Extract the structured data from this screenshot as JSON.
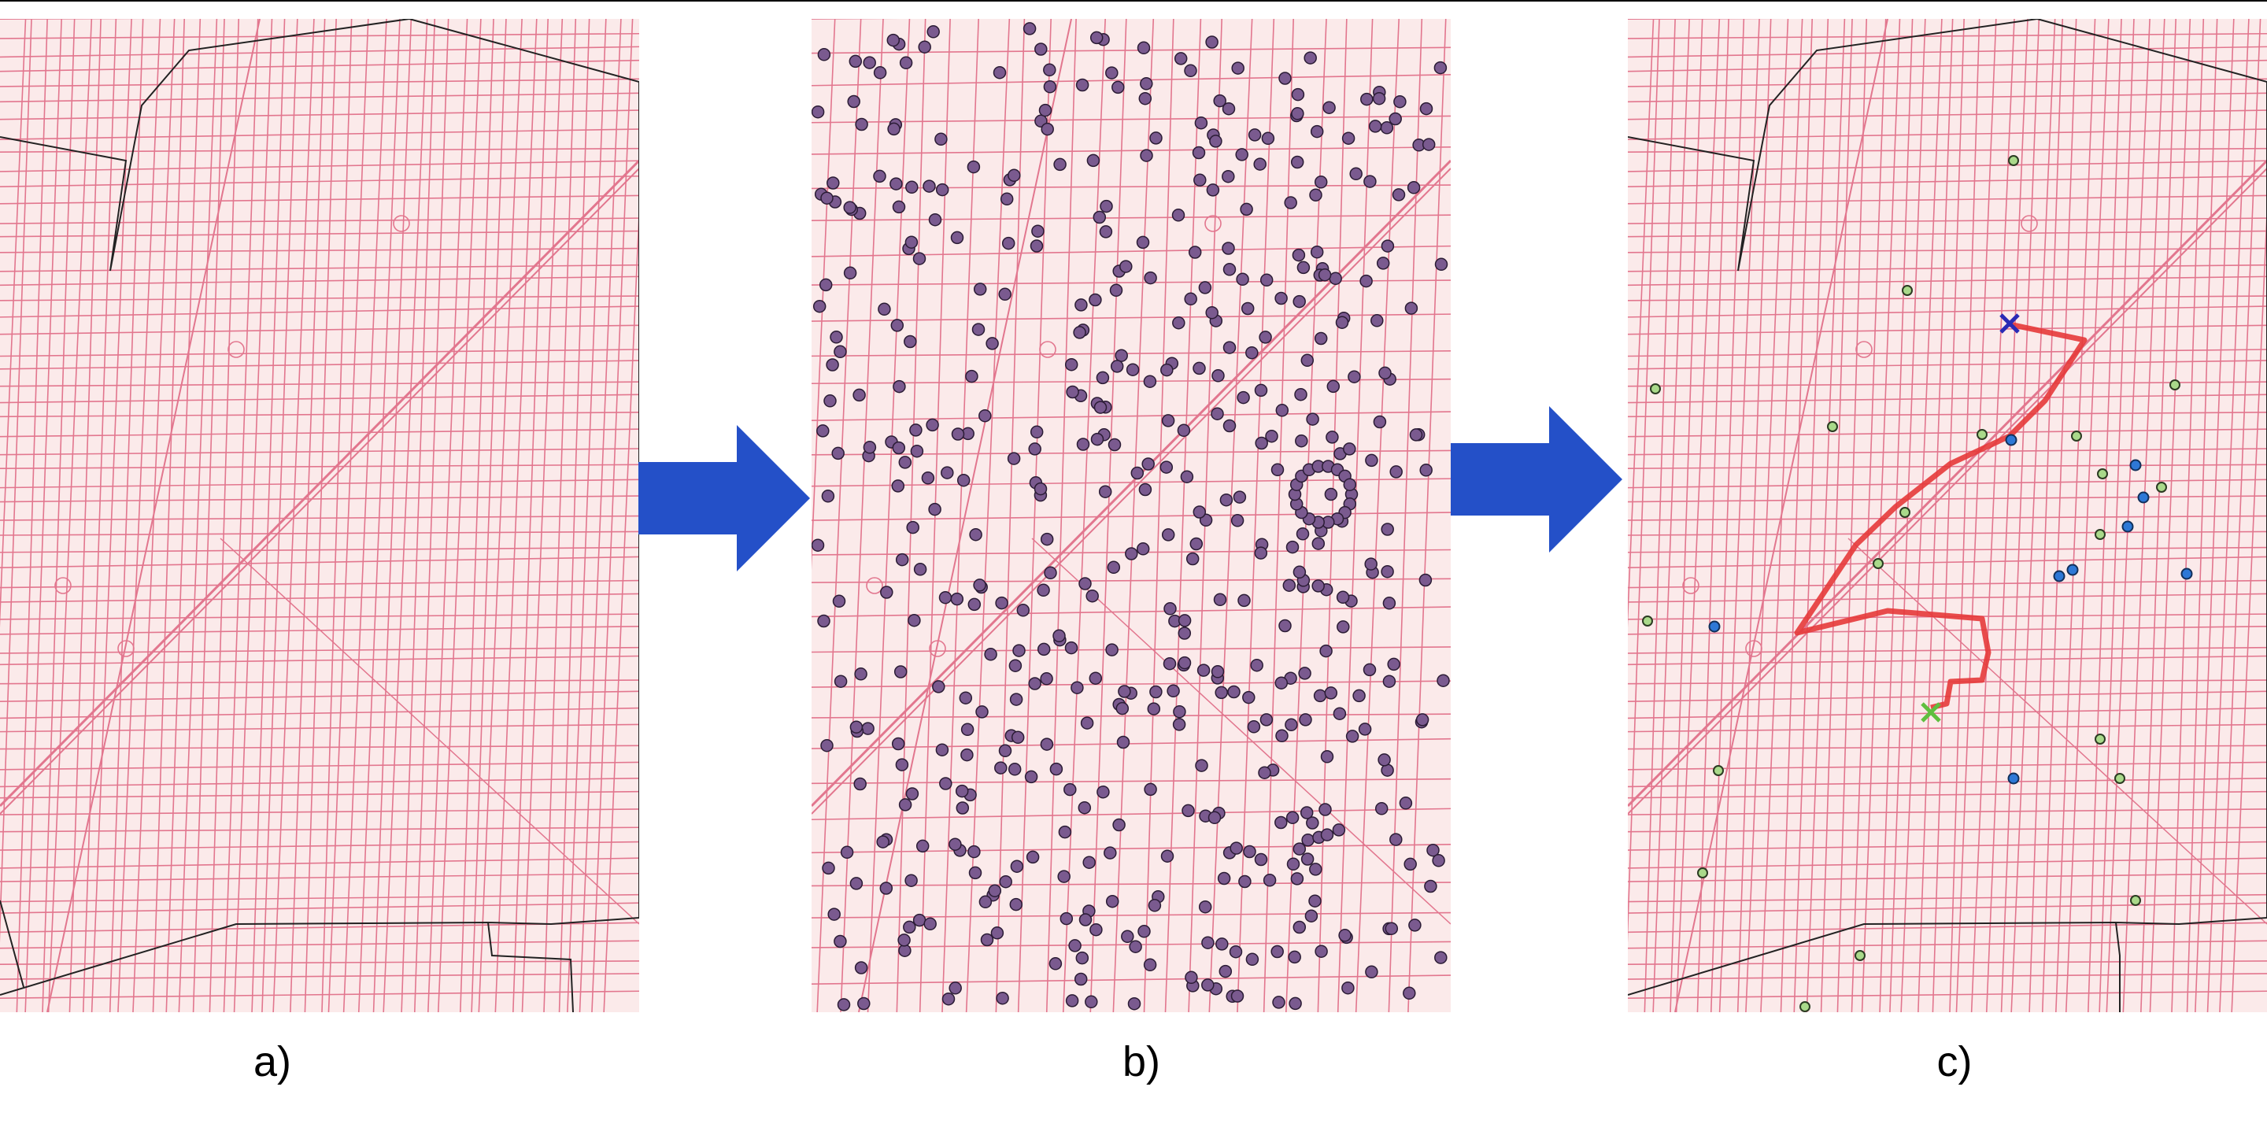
{
  "captions": {
    "a": "a)",
    "b": "b)",
    "c": "c)"
  },
  "colors": {
    "background": "#ffffff",
    "map_fill": "#fbeaea",
    "street": "#e06a85",
    "boundary": "#222222",
    "node_fill": "#7a5a8f",
    "node_stroke": "#2b1c35",
    "arrow": "#2450c8",
    "route": "#e53a3a",
    "start_marker": "#2a2ab5",
    "end_marker": "#5fbf3f",
    "green_point": "#a9d98a",
    "blue_point": "#2e78d6"
  },
  "icons": {
    "arrow_1": "right-arrow-icon",
    "arrow_2": "right-arrow-icon",
    "start": "x-marker-icon",
    "end": "x-marker-icon"
  }
}
